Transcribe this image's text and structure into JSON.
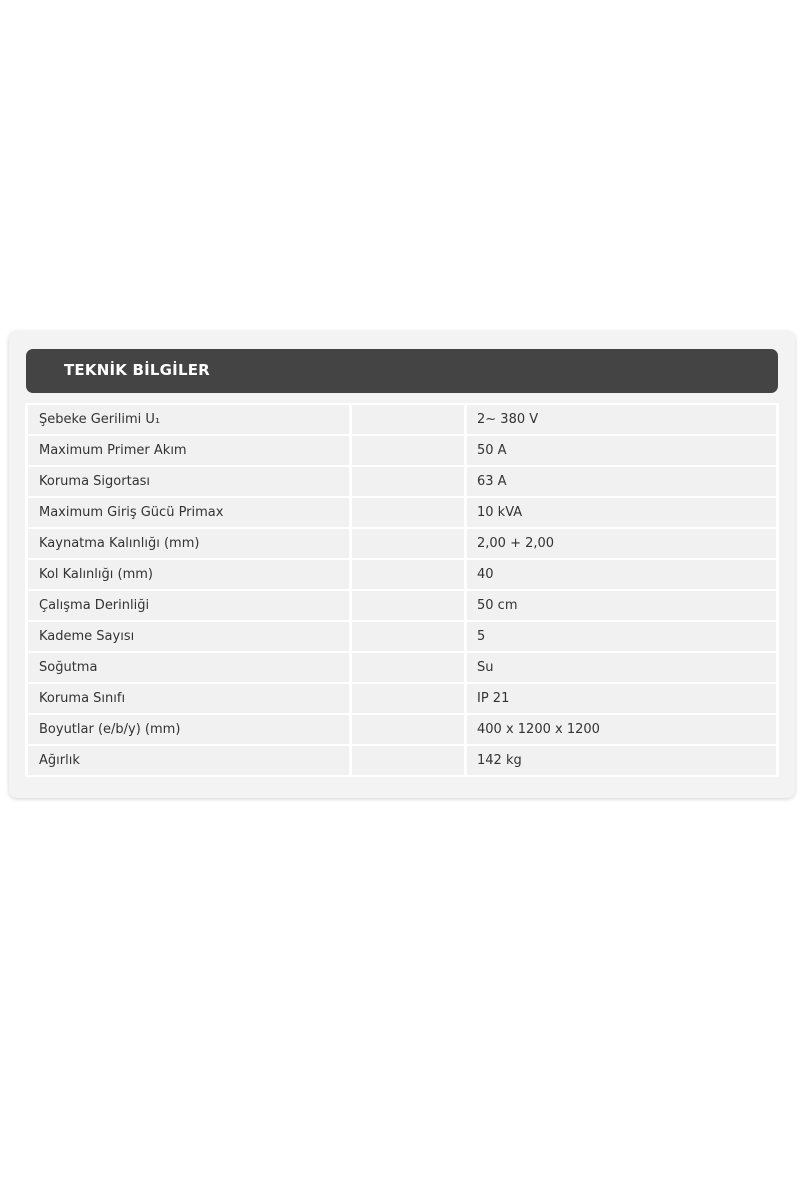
{
  "section": {
    "title": "TEKNİK BİLGİLER"
  },
  "specs": [
    {
      "label": "Şebeke Gerilimi U₁",
      "value": "2~ 380 V"
    },
    {
      "label": "Maximum Primer Akım",
      "value": "50 A"
    },
    {
      "label": "Koruma Sigortası",
      "value": "63 A"
    },
    {
      "label": "Maximum Giriş Gücü Primax",
      "value": "10 kVA"
    },
    {
      "label": "Kaynatma Kalınlığı (mm)",
      "value": "2,00 + 2,00"
    },
    {
      "label": "Kol Kalınlığı (mm)",
      "value": "40"
    },
    {
      "label": "Çalışma Derinliği",
      "value": "50 cm"
    },
    {
      "label": "Kademe Sayısı",
      "value": "5"
    },
    {
      "label": "Soğutma",
      "value": "Su"
    },
    {
      "label": "Koruma Sınıfı",
      "value": "IP 21"
    },
    {
      "label": "Boyutlar (e/b/y) (mm)",
      "value": "400 x 1200 x 1200"
    },
    {
      "label": "Ağırlık",
      "value": "142 kg"
    }
  ]
}
